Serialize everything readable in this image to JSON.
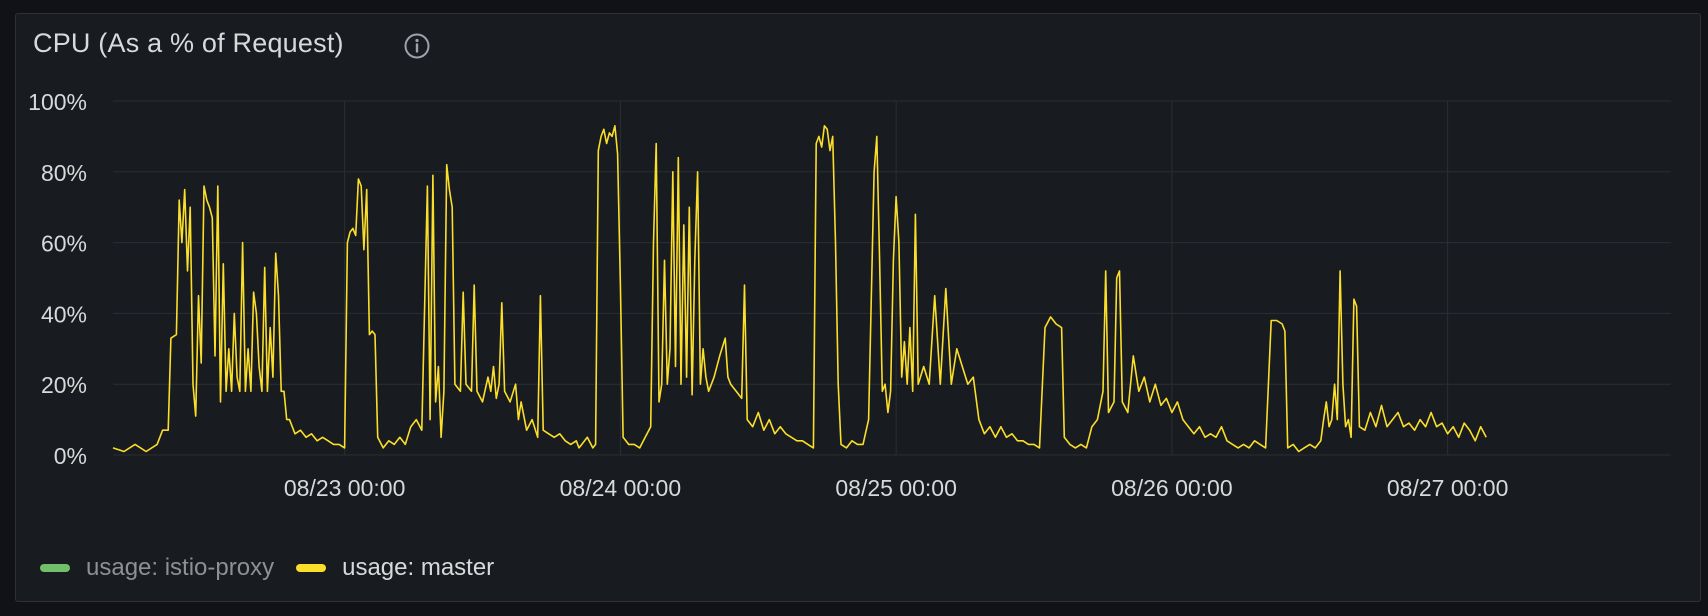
{
  "panel": {
    "title": "CPU (As a % of Request)",
    "info_icon": "info-circle-icon"
  },
  "colors": {
    "background": "#181b1f",
    "grid": "#2b2e34",
    "text": "#d8d9da",
    "istio": "#73bf69",
    "master": "#fade2a"
  },
  "chart_data": {
    "type": "line",
    "title": "CPU (As a % of Request)",
    "xlabel": "",
    "ylabel": "",
    "ylim": [
      0,
      100
    ],
    "y_ticks": [
      "0%",
      "20%",
      "40%",
      "60%",
      "80%",
      "100%"
    ],
    "x_ticks": [
      "08/23 00:00",
      "08/24 00:00",
      "08/25 00:00",
      "08/26 00:00",
      "08/27 00:00"
    ],
    "xlim": [
      -0.84,
      4.81
    ],
    "grid": true,
    "legend_position": "bottom-left",
    "series": [
      {
        "name": "usage: istio-proxy",
        "color": "#73bf69",
        "hidden": true,
        "points": []
      },
      {
        "name": "usage: master",
        "color": "#fade2a",
        "points": [
          [
            -0.84,
            2
          ],
          [
            -0.8,
            1
          ],
          [
            -0.76,
            3
          ],
          [
            -0.72,
            1
          ],
          [
            -0.68,
            3
          ],
          [
            -0.66,
            7
          ],
          [
            -0.64,
            7
          ],
          [
            -0.63,
            33
          ],
          [
            -0.61,
            34
          ],
          [
            -0.6,
            72
          ],
          [
            -0.59,
            60
          ],
          [
            -0.58,
            75
          ],
          [
            -0.57,
            52
          ],
          [
            -0.56,
            70
          ],
          [
            -0.55,
            20
          ],
          [
            -0.54,
            11
          ],
          [
            -0.53,
            45
          ],
          [
            -0.52,
            26
          ],
          [
            -0.51,
            76
          ],
          [
            -0.5,
            72
          ],
          [
            -0.49,
            70
          ],
          [
            -0.48,
            67
          ],
          [
            -0.47,
            28
          ],
          [
            -0.46,
            76
          ],
          [
            -0.45,
            15
          ],
          [
            -0.44,
            54
          ],
          [
            -0.43,
            18
          ],
          [
            -0.42,
            30
          ],
          [
            -0.41,
            18
          ],
          [
            -0.4,
            40
          ],
          [
            -0.39,
            22
          ],
          [
            -0.38,
            18
          ],
          [
            -0.37,
            60
          ],
          [
            -0.36,
            18
          ],
          [
            -0.35,
            30
          ],
          [
            -0.34,
            18
          ],
          [
            -0.33,
            46
          ],
          [
            -0.32,
            40
          ],
          [
            -0.31,
            25
          ],
          [
            -0.3,
            18
          ],
          [
            -0.29,
            53
          ],
          [
            -0.28,
            18
          ],
          [
            -0.27,
            36
          ],
          [
            -0.26,
            22
          ],
          [
            -0.25,
            57
          ],
          [
            -0.24,
            45
          ],
          [
            -0.23,
            18
          ],
          [
            -0.22,
            18
          ],
          [
            -0.21,
            10
          ],
          [
            -0.2,
            10
          ],
          [
            -0.18,
            6
          ],
          [
            -0.16,
            7
          ],
          [
            -0.14,
            5
          ],
          [
            -0.12,
            6
          ],
          [
            -0.1,
            4
          ],
          [
            -0.08,
            5
          ],
          [
            -0.06,
            4
          ],
          [
            -0.04,
            3
          ],
          [
            -0.02,
            3
          ],
          [
            0,
            2
          ],
          [
            0.01,
            60
          ],
          [
            0.02,
            63
          ],
          [
            0.03,
            64
          ],
          [
            0.04,
            62
          ],
          [
            0.05,
            78
          ],
          [
            0.06,
            76
          ],
          [
            0.07,
            58
          ],
          [
            0.08,
            75
          ],
          [
            0.09,
            34
          ],
          [
            0.1,
            35
          ],
          [
            0.11,
            34
          ],
          [
            0.12,
            5
          ],
          [
            0.14,
            2
          ],
          [
            0.16,
            4
          ],
          [
            0.18,
            3
          ],
          [
            0.2,
            5
          ],
          [
            0.22,
            3
          ],
          [
            0.24,
            8
          ],
          [
            0.26,
            10
          ],
          [
            0.28,
            7
          ],
          [
            0.3,
            76
          ],
          [
            0.31,
            10
          ],
          [
            0.32,
            79
          ],
          [
            0.33,
            15
          ],
          [
            0.34,
            25
          ],
          [
            0.35,
            5
          ],
          [
            0.36,
            18
          ],
          [
            0.37,
            82
          ],
          [
            0.38,
            75
          ],
          [
            0.39,
            70
          ],
          [
            0.4,
            20
          ],
          [
            0.42,
            18
          ],
          [
            0.43,
            46
          ],
          [
            0.44,
            20
          ],
          [
            0.46,
            18
          ],
          [
            0.47,
            48
          ],
          [
            0.48,
            18
          ],
          [
            0.5,
            15
          ],
          [
            0.52,
            22
          ],
          [
            0.53,
            18
          ],
          [
            0.54,
            25
          ],
          [
            0.55,
            16
          ],
          [
            0.56,
            20
          ],
          [
            0.57,
            43
          ],
          [
            0.58,
            18
          ],
          [
            0.6,
            15
          ],
          [
            0.62,
            20
          ],
          [
            0.63,
            10
          ],
          [
            0.64,
            15
          ],
          [
            0.66,
            7
          ],
          [
            0.68,
            10
          ],
          [
            0.7,
            5
          ],
          [
            0.71,
            45
          ],
          [
            0.72,
            7
          ],
          [
            0.74,
            6
          ],
          [
            0.76,
            5
          ],
          [
            0.78,
            6
          ],
          [
            0.8,
            4
          ],
          [
            0.82,
            3
          ],
          [
            0.84,
            4
          ],
          [
            0.85,
            2
          ],
          [
            0.86,
            3
          ],
          [
            0.88,
            5
          ],
          [
            0.9,
            2
          ],
          [
            0.91,
            3
          ],
          [
            0.92,
            86
          ],
          [
            0.93,
            90
          ],
          [
            0.94,
            92
          ],
          [
            0.95,
            88
          ],
          [
            0.96,
            91
          ],
          [
            0.97,
            90
          ],
          [
            0.98,
            93
          ],
          [
            0.99,
            85
          ],
          [
            1.0,
            48
          ],
          [
            1.01,
            5
          ],
          [
            1.03,
            3
          ],
          [
            1.05,
            3
          ],
          [
            1.07,
            2
          ],
          [
            1.09,
            5
          ],
          [
            1.11,
            8
          ],
          [
            1.12,
            60
          ],
          [
            1.13,
            88
          ],
          [
            1.14,
            15
          ],
          [
            1.15,
            20
          ],
          [
            1.16,
            55
          ],
          [
            1.17,
            20
          ],
          [
            1.18,
            30
          ],
          [
            1.19,
            80
          ],
          [
            1.2,
            25
          ],
          [
            1.21,
            84
          ],
          [
            1.22,
            20
          ],
          [
            1.23,
            65
          ],
          [
            1.24,
            22
          ],
          [
            1.25,
            70
          ],
          [
            1.26,
            17
          ],
          [
            1.27,
            55
          ],
          [
            1.28,
            80
          ],
          [
            1.29,
            20
          ],
          [
            1.3,
            30
          ],
          [
            1.31,
            22
          ],
          [
            1.32,
            18
          ],
          [
            1.34,
            22
          ],
          [
            1.36,
            28
          ],
          [
            1.38,
            33
          ],
          [
            1.39,
            22
          ],
          [
            1.4,
            20
          ],
          [
            1.42,
            18
          ],
          [
            1.44,
            16
          ],
          [
            1.45,
            48
          ],
          [
            1.46,
            10
          ],
          [
            1.48,
            8
          ],
          [
            1.5,
            12
          ],
          [
            1.52,
            7
          ],
          [
            1.54,
            10
          ],
          [
            1.56,
            6
          ],
          [
            1.58,
            8
          ],
          [
            1.6,
            6
          ],
          [
            1.62,
            5
          ],
          [
            1.64,
            4
          ],
          [
            1.66,
            4
          ],
          [
            1.68,
            3
          ],
          [
            1.7,
            2
          ],
          [
            1.71,
            88
          ],
          [
            1.72,
            90
          ],
          [
            1.73,
            87
          ],
          [
            1.74,
            93
          ],
          [
            1.75,
            92
          ],
          [
            1.76,
            86
          ],
          [
            1.77,
            90
          ],
          [
            1.78,
            60
          ],
          [
            1.79,
            20
          ],
          [
            1.8,
            3
          ],
          [
            1.82,
            2
          ],
          [
            1.84,
            4
          ],
          [
            1.86,
            3
          ],
          [
            1.88,
            3
          ],
          [
            1.9,
            10
          ],
          [
            1.92,
            80
          ],
          [
            1.93,
            90
          ],
          [
            1.94,
            55
          ],
          [
            1.95,
            18
          ],
          [
            1.96,
            20
          ],
          [
            1.97,
            12
          ],
          [
            1.98,
            18
          ],
          [
            1.99,
            55
          ],
          [
            2.0,
            73
          ],
          [
            2.01,
            60
          ],
          [
            2.02,
            22
          ],
          [
            2.03,
            32
          ],
          [
            2.04,
            20
          ],
          [
            2.05,
            36
          ],
          [
            2.06,
            18
          ],
          [
            2.07,
            68
          ],
          [
            2.08,
            20
          ],
          [
            2.1,
            25
          ],
          [
            2.12,
            20
          ],
          [
            2.14,
            45
          ],
          [
            2.16,
            20
          ],
          [
            2.18,
            47
          ],
          [
            2.2,
            20
          ],
          [
            2.22,
            30
          ],
          [
            2.24,
            25
          ],
          [
            2.26,
            20
          ],
          [
            2.28,
            22
          ],
          [
            2.3,
            10
          ],
          [
            2.32,
            6
          ],
          [
            2.34,
            8
          ],
          [
            2.36,
            5
          ],
          [
            2.38,
            8
          ],
          [
            2.4,
            5
          ],
          [
            2.42,
            6
          ],
          [
            2.44,
            4
          ],
          [
            2.46,
            4
          ],
          [
            2.48,
            3
          ],
          [
            2.5,
            3
          ],
          [
            2.52,
            2
          ],
          [
            2.54,
            36
          ],
          [
            2.56,
            39
          ],
          [
            2.58,
            37
          ],
          [
            2.6,
            36
          ],
          [
            2.61,
            5
          ],
          [
            2.63,
            3
          ],
          [
            2.65,
            2
          ],
          [
            2.67,
            3
          ],
          [
            2.69,
            2
          ],
          [
            2.71,
            8
          ],
          [
            2.73,
            10
          ],
          [
            2.75,
            18
          ],
          [
            2.76,
            52
          ],
          [
            2.77,
            12
          ],
          [
            2.79,
            15
          ],
          [
            2.8,
            50
          ],
          [
            2.81,
            52
          ],
          [
            2.82,
            15
          ],
          [
            2.84,
            12
          ],
          [
            2.86,
            28
          ],
          [
            2.88,
            18
          ],
          [
            2.9,
            22
          ],
          [
            2.92,
            15
          ],
          [
            2.94,
            20
          ],
          [
            2.96,
            14
          ],
          [
            2.98,
            16
          ],
          [
            3.0,
            12
          ],
          [
            3.02,
            15
          ],
          [
            3.04,
            10
          ],
          [
            3.06,
            8
          ],
          [
            3.08,
            6
          ],
          [
            3.1,
            8
          ],
          [
            3.12,
            5
          ],
          [
            3.14,
            6
          ],
          [
            3.16,
            5
          ],
          [
            3.18,
            8
          ],
          [
            3.2,
            4
          ],
          [
            3.22,
            3
          ],
          [
            3.24,
            2
          ],
          [
            3.26,
            3
          ],
          [
            3.28,
            2
          ],
          [
            3.3,
            4
          ],
          [
            3.32,
            3
          ],
          [
            3.34,
            2
          ],
          [
            3.36,
            38
          ],
          [
            3.38,
            38
          ],
          [
            3.4,
            37
          ],
          [
            3.41,
            35
          ],
          [
            3.42,
            2
          ],
          [
            3.44,
            3
          ],
          [
            3.46,
            1
          ],
          [
            3.48,
            2
          ],
          [
            3.5,
            3
          ],
          [
            3.52,
            2
          ],
          [
            3.54,
            4
          ],
          [
            3.55,
            10
          ],
          [
            3.56,
            15
          ],
          [
            3.57,
            8
          ],
          [
            3.58,
            10
          ],
          [
            3.59,
            20
          ],
          [
            3.6,
            10
          ],
          [
            3.61,
            52
          ],
          [
            3.62,
            20
          ],
          [
            3.63,
            8
          ],
          [
            3.64,
            10
          ],
          [
            3.65,
            5
          ],
          [
            3.66,
            44
          ],
          [
            3.67,
            42
          ],
          [
            3.68,
            8
          ],
          [
            3.7,
            7
          ],
          [
            3.72,
            12
          ],
          [
            3.74,
            8
          ],
          [
            3.76,
            14
          ],
          [
            3.78,
            8
          ],
          [
            3.8,
            10
          ],
          [
            3.82,
            12
          ],
          [
            3.84,
            8
          ],
          [
            3.86,
            9
          ],
          [
            3.88,
            7
          ],
          [
            3.9,
            10
          ],
          [
            3.92,
            8
          ],
          [
            3.94,
            12
          ],
          [
            3.96,
            8
          ],
          [
            3.98,
            9
          ],
          [
            4.0,
            6
          ],
          [
            4.02,
            8
          ],
          [
            4.04,
            5
          ],
          [
            4.06,
            9
          ],
          [
            4.08,
            7
          ],
          [
            4.1,
            4
          ],
          [
            4.12,
            8
          ],
          [
            4.14,
            5
          ]
        ]
      }
    ]
  }
}
